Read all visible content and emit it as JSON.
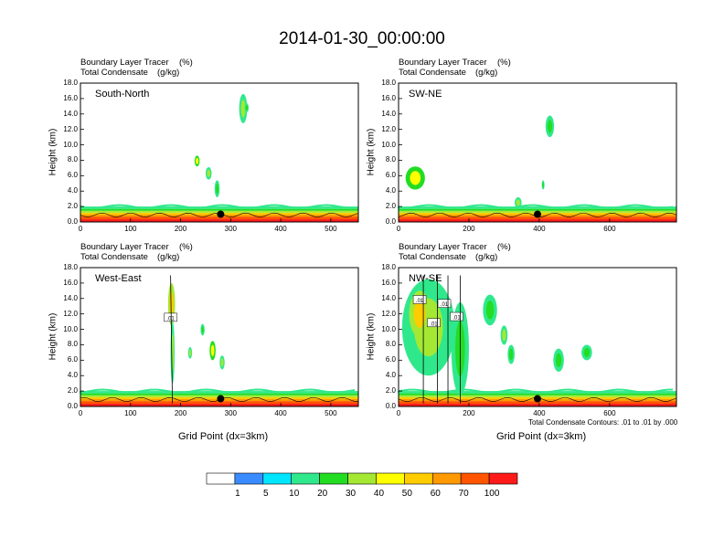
{
  "title": "2014-01-30_00:00:00",
  "chart_data": [
    {
      "type": "heatmap",
      "panel": "South-North",
      "subtitle_left": "Boundary Layer Tracer",
      "subtitle_unit1": "(%)",
      "subtitle_left2": "Total Condensate",
      "subtitle_unit2": "(g/kg)",
      "ylabel": "Height (km)",
      "xlabel": "",
      "xlim": [
        0,
        555
      ],
      "ylim": [
        0,
        18
      ],
      "xticks": [
        "0",
        "100",
        "200",
        "300",
        "400",
        "500"
      ],
      "xtick_values": [
        0,
        100,
        200,
        300,
        400,
        500
      ],
      "yticks": [
        "0.0",
        "2.0",
        "4.0",
        "6.0",
        "8.0",
        "10.0",
        "12.0",
        "14.0",
        "16.0",
        "18.0"
      ],
      "ytick_values": [
        0,
        2,
        4,
        6,
        8,
        10,
        12,
        14,
        16,
        18
      ],
      "marker": {
        "x": 280,
        "y": 1.0
      },
      "boundary_layer_top_km": 2.0,
      "patches": [
        {
          "x": 317,
          "y": 12.8,
          "w": 16,
          "h": 3.8,
          "value": 30
        },
        {
          "x": 328,
          "y": 14.2,
          "w": 8,
          "h": 1.2,
          "value": 20
        },
        {
          "x": 228,
          "y": 7.2,
          "w": 10,
          "h": 1.4,
          "value": 40
        },
        {
          "x": 250,
          "y": 5.5,
          "w": 12,
          "h": 1.6,
          "value": 30
        },
        {
          "x": 268,
          "y": 3.2,
          "w": 10,
          "h": 2.2,
          "value": 20
        }
      ]
    },
    {
      "type": "heatmap",
      "panel": "SW-NE",
      "subtitle_left": "Boundary Layer Tracer",
      "subtitle_unit1": "(%)",
      "subtitle_left2": "Total Condensate",
      "subtitle_unit2": "(g/kg)",
      "ylabel": "Height (km)",
      "xlabel": "",
      "xlim": [
        0,
        790
      ],
      "ylim": [
        0,
        18
      ],
      "xticks": [
        "0",
        "200",
        "400",
        "600"
      ],
      "xtick_values": [
        0,
        200,
        400,
        600
      ],
      "yticks": [
        "0.0",
        "2.0",
        "4.0",
        "6.0",
        "8.0",
        "10.0",
        "12.0",
        "14.0",
        "16.0",
        "18.0"
      ],
      "ytick_values": [
        0,
        2,
        4,
        6,
        8,
        10,
        12,
        14,
        16,
        18
      ],
      "marker": {
        "x": 395,
        "y": 1.0
      },
      "boundary_layer_top_km": 2.0,
      "patches": [
        {
          "x": 20,
          "y": 4.2,
          "w": 55,
          "h": 3.0,
          "value": 40
        },
        {
          "x": 418,
          "y": 11.0,
          "w": 24,
          "h": 2.8,
          "value": 20
        },
        {
          "x": 408,
          "y": 4.2,
          "w": 6,
          "h": 1.2,
          "value": 20
        },
        {
          "x": 330,
          "y": 1.8,
          "w": 20,
          "h": 1.4,
          "value": 30
        }
      ]
    },
    {
      "type": "heatmap",
      "panel": "West-East",
      "subtitle_left": "Boundary Layer Tracer",
      "subtitle_unit1": "(%)",
      "subtitle_left2": "Total Condensate",
      "subtitle_unit2": "(g/kg)",
      "ylabel": "Height (km)",
      "xlabel": "Grid Point (dx=3km)",
      "xlim": [
        0,
        555
      ],
      "ylim": [
        0,
        18
      ],
      "xticks": [
        "0",
        "100",
        "200",
        "300",
        "400",
        "500"
      ],
      "xtick_values": [
        0,
        100,
        200,
        300,
        400,
        500
      ],
      "yticks": [
        "0.0",
        "2.0",
        "4.0",
        "6.0",
        "8.0",
        "10.0",
        "12.0",
        "14.0",
        "16.0",
        "18.0"
      ],
      "ytick_values": [
        0,
        2,
        4,
        6,
        8,
        10,
        12,
        14,
        16,
        18
      ],
      "marker": {
        "x": 280,
        "y": 1.0
      },
      "boundary_layer_top_km": 2.0,
      "contour_labels": [
        ".01"
      ],
      "patches": [
        {
          "x": 175,
          "y": 10.5,
          "w": 14,
          "h": 5.5,
          "value": 50
        },
        {
          "x": 180,
          "y": 3.0,
          "w": 8,
          "h": 8.0,
          "value": 30
        },
        {
          "x": 258,
          "y": 6.0,
          "w": 12,
          "h": 2.5,
          "value": 40
        },
        {
          "x": 215,
          "y": 6.2,
          "w": 8,
          "h": 1.5,
          "value": 30
        },
        {
          "x": 240,
          "y": 9.2,
          "w": 8,
          "h": 1.5,
          "value": 20
        },
        {
          "x": 278,
          "y": 4.8,
          "w": 10,
          "h": 1.8,
          "value": 30
        }
      ]
    },
    {
      "type": "heatmap",
      "panel": "NW-SE",
      "subtitle_left": "Boundary Layer Tracer",
      "subtitle_unit1": "(%)",
      "subtitle_left2": "Total Condensate",
      "subtitle_unit2": "(g/kg)",
      "ylabel": "Height (km)",
      "xlabel": "Grid Point (dx=3km)",
      "xlim": [
        0,
        790
      ],
      "ylim": [
        0,
        18
      ],
      "xticks": [
        "0",
        "200",
        "400",
        "600"
      ],
      "xtick_values": [
        0,
        200,
        400,
        600
      ],
      "yticks": [
        "0.0",
        "2.0",
        "4.0",
        "6.0",
        "8.0",
        "10.0",
        "12.0",
        "14.0",
        "16.0",
        "18.0"
      ],
      "ytick_values": [
        0,
        2,
        4,
        6,
        8,
        10,
        12,
        14,
        16,
        18
      ],
      "marker": {
        "x": 395,
        "y": 1.0
      },
      "boundary_layer_top_km": 2.0,
      "contour_labels": [
        ".01",
        ".01",
        ".01",
        ".01"
      ],
      "footnote": "Total Condensate Contours: .01 to .01 by .000",
      "patches": [
        {
          "x": 10,
          "y": 4.0,
          "w": 150,
          "h": 12.5,
          "value": 30
        },
        {
          "x": 30,
          "y": 9.0,
          "w": 60,
          "h": 6.0,
          "value": 50
        },
        {
          "x": 150,
          "y": 1.5,
          "w": 50,
          "h": 12.0,
          "value": 20
        },
        {
          "x": 240,
          "y": 10.5,
          "w": 40,
          "h": 4.0,
          "value": 20
        },
        {
          "x": 290,
          "y": 8.0,
          "w": 20,
          "h": 2.5,
          "value": 30
        },
        {
          "x": 440,
          "y": 4.5,
          "w": 30,
          "h": 3.0,
          "value": 20
        },
        {
          "x": 520,
          "y": 6.0,
          "w": 30,
          "h": 2.0,
          "value": 20
        },
        {
          "x": 310,
          "y": 5.5,
          "w": 20,
          "h": 2.5,
          "value": 20
        }
      ]
    }
  ],
  "colorbar": {
    "labels": [
      "1",
      "5",
      "10",
      "20",
      "30",
      "40",
      "50",
      "60",
      "70",
      "100"
    ],
    "colors": [
      "#ffffff",
      "#3a8bff",
      "#00e6ff",
      "#30e88c",
      "#22dd22",
      "#a4e833",
      "#ffff00",
      "#ffcc00",
      "#ff9900",
      "#ff5500",
      "#ff1a1a"
    ]
  }
}
